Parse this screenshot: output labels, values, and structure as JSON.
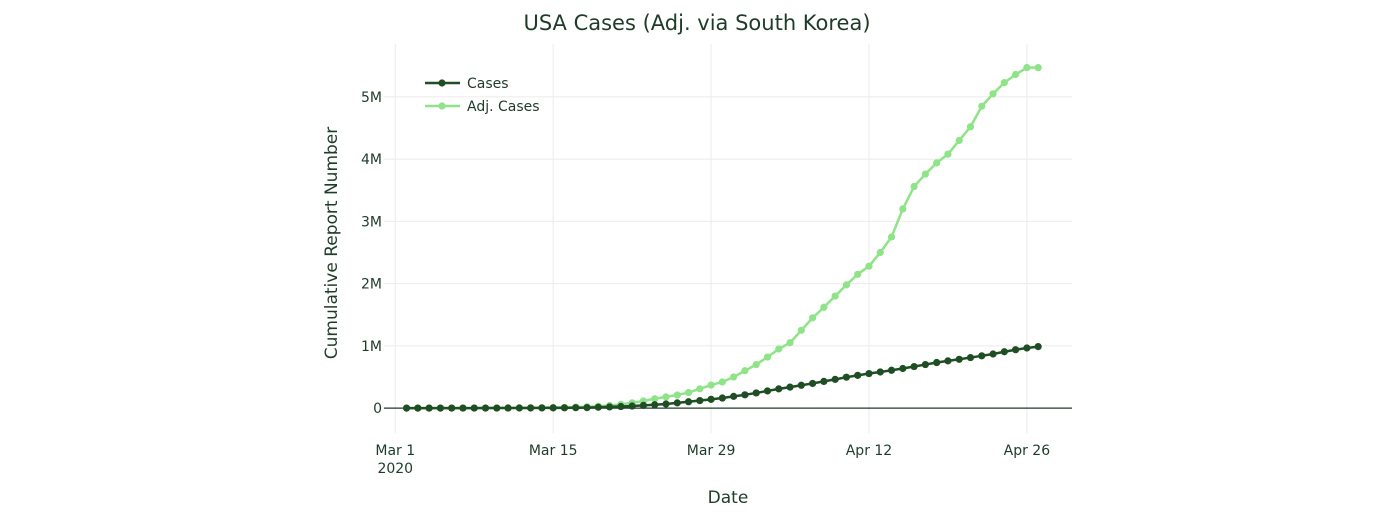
{
  "chart_data": {
    "type": "line",
    "title": "USA Cases (Adj. via South Korea)",
    "xlabel": "Date",
    "ylabel": "Cumulative Report Number",
    "xlim": [
      "2020-02-29",
      "2020-04-30"
    ],
    "ylim": [
      -400000,
      5850000
    ],
    "grid": true,
    "legend_position": "top-left",
    "x_ticks": [
      {
        "date": "2020-03-01",
        "label": "Mar 1",
        "sublabel": "2020"
      },
      {
        "date": "2020-03-15",
        "label": "Mar 15",
        "sublabel": ""
      },
      {
        "date": "2020-03-29",
        "label": "Mar 29",
        "sublabel": ""
      },
      {
        "date": "2020-04-12",
        "label": "Apr 12",
        "sublabel": ""
      },
      {
        "date": "2020-04-26",
        "label": "Apr 26",
        "sublabel": ""
      }
    ],
    "y_ticks": [
      {
        "value": 0,
        "label": "0"
      },
      {
        "value": 1000000,
        "label": "1M"
      },
      {
        "value": 2000000,
        "label": "2M"
      },
      {
        "value": 3000000,
        "label": "3M"
      },
      {
        "value": 4000000,
        "label": "4M"
      },
      {
        "value": 5000000,
        "label": "5M"
      }
    ],
    "x": [
      "2020-03-02",
      "2020-03-03",
      "2020-03-04",
      "2020-03-05",
      "2020-03-06",
      "2020-03-07",
      "2020-03-08",
      "2020-03-09",
      "2020-03-10",
      "2020-03-11",
      "2020-03-12",
      "2020-03-13",
      "2020-03-14",
      "2020-03-15",
      "2020-03-16",
      "2020-03-17",
      "2020-03-18",
      "2020-03-19",
      "2020-03-20",
      "2020-03-21",
      "2020-03-22",
      "2020-03-23",
      "2020-03-24",
      "2020-03-25",
      "2020-03-26",
      "2020-03-27",
      "2020-03-28",
      "2020-03-29",
      "2020-03-30",
      "2020-03-31",
      "2020-04-01",
      "2020-04-02",
      "2020-04-03",
      "2020-04-04",
      "2020-04-05",
      "2020-04-06",
      "2020-04-07",
      "2020-04-08",
      "2020-04-09",
      "2020-04-10",
      "2020-04-11",
      "2020-04-12",
      "2020-04-13",
      "2020-04-14",
      "2020-04-15",
      "2020-04-16",
      "2020-04-17",
      "2020-04-18",
      "2020-04-19",
      "2020-04-20",
      "2020-04-21",
      "2020-04-22",
      "2020-04-23",
      "2020-04-24",
      "2020-04-25",
      "2020-04-26",
      "2020-04-27"
    ],
    "series": [
      {
        "name": "Cases",
        "color": "#1f4d24",
        "values": [
          100,
          124,
          158,
          221,
          319,
          435,
          541,
          704,
          994,
          1301,
          1630,
          2183,
          2770,
          3613,
          4596,
          6344,
          7731,
          13680,
          19101,
          25493,
          33276,
          43847,
          53740,
          65778,
          83836,
          101657,
          121478,
          140886,
          161807,
          188172,
          213372,
          243762,
          275586,
          308853,
          337072,
          366667,
          396223,
          429052,
          461437,
          496535,
          526396,
          555313,
          580619,
          607670,
          636350,
          667801,
          699706,
          732197,
          758809,
          784326,
          811865,
          840351,
          869170,
          905358,
          938154,
          965785,
          988197
        ]
      },
      {
        "name": "Adj. Cases",
        "color": "#8fe388",
        "values": [
          200,
          300,
          400,
          600,
          800,
          1100,
          1500,
          2000,
          2800,
          3700,
          4800,
          6200,
          8000,
          10000,
          13000,
          17000,
          22000,
          30000,
          42000,
          60000,
          85000,
          115000,
          150000,
          180000,
          210000,
          250000,
          310000,
          370000,
          420000,
          500000,
          600000,
          700000,
          820000,
          950000,
          1050000,
          1250000,
          1450000,
          1620000,
          1800000,
          1980000,
          2150000,
          2280000,
          2500000,
          2750000,
          3200000,
          3560000,
          3760000,
          3940000,
          4080000,
          4300000,
          4520000,
          4850000,
          5050000,
          5230000,
          5360000,
          5470000,
          5470000
        ]
      }
    ]
  }
}
